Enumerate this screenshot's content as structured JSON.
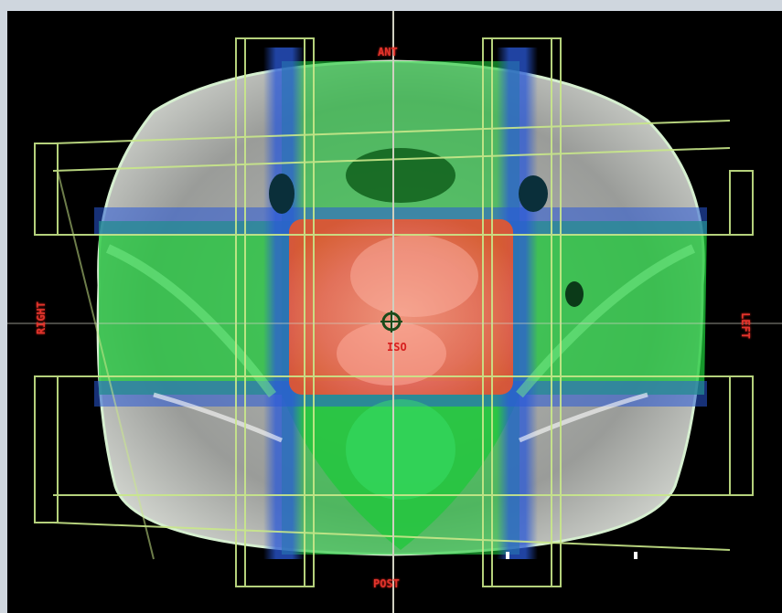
{
  "image": {
    "subject": "treatment-plan-dose-distribution",
    "colors": {
      "background": "#000000",
      "body": "#a8aaa8",
      "dose_low": "#1f4fd0",
      "dose_mid": "#1ec83a",
      "dose_high": "#f26a5c",
      "field_lines": "#c9e88a",
      "label_red": "#e0342c"
    }
  },
  "labels": {
    "top": "ANT",
    "bottom": "POST",
    "left": "RIGHT",
    "right": "LEFT",
    "isocenter": "ISO"
  }
}
